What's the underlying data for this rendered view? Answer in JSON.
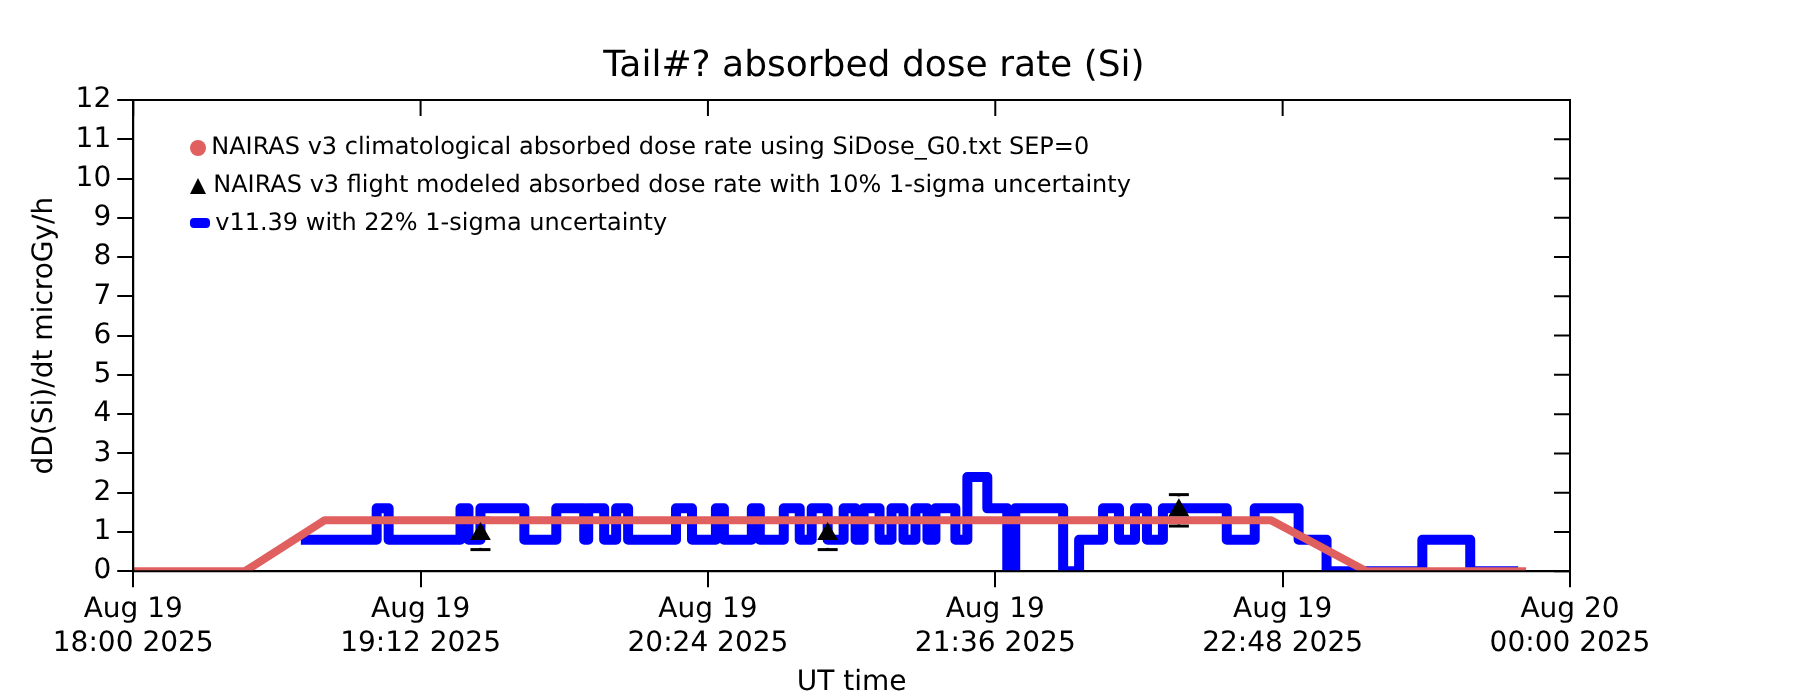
{
  "chart_data": {
    "type": "line",
    "title": "Tail#? absorbed dose rate (Si)",
    "xlabel": "UT time",
    "ylabel": "dD(Si)/dt microGy/h",
    "xlim": [
      "2025-08-19T18:00",
      "2025-08-20T00:00"
    ],
    "xticks": [
      {
        "value": "2025-08-19T18:00",
        "label": "Aug 19\n18:00 2025"
      },
      {
        "value": "2025-08-19T19:12",
        "label": "Aug 19\n19:12 2025"
      },
      {
        "value": "2025-08-19T20:24",
        "label": "Aug 19\n20:24 2025"
      },
      {
        "value": "2025-08-19T21:36",
        "label": "Aug 19\n21:36 2025"
      },
      {
        "value": "2025-08-19T22:48",
        "label": "Aug 19\n22:48 2025"
      },
      {
        "value": "2025-08-20T00:00",
        "label": "Aug 20\n00:00 2025"
      }
    ],
    "ylim": [
      0,
      12
    ],
    "yticks": [
      0,
      1,
      2,
      3,
      4,
      5,
      6,
      7,
      8,
      9,
      10,
      11,
      12
    ],
    "grid": false,
    "legend": "top left",
    "series": [
      {
        "name": "NAIRAS v3 climatological absorbed dose rate using SiDose_G0.txt SEP=0",
        "color": "#e06060",
        "marker": "none",
        "x": [
          "2025-08-19T18:00",
          "2025-08-19T18:28",
          "2025-08-19T18:48",
          "2025-08-19T22:45",
          "2025-08-19T23:09",
          "2025-08-19T23:49"
        ],
        "values": [
          0,
          0,
          1.3,
          1.3,
          0,
          0
        ]
      },
      {
        "name": "NAIRAS v3 flight modeled absorbed dose rate with 10% 1-sigma uncertainty",
        "type": "scatter",
        "color": "#000000",
        "marker": "triangle",
        "x": [
          "2025-08-19T19:27",
          "2025-08-19T20:54",
          "2025-08-19T22:22"
        ],
        "values": [
          0.95,
          0.95,
          1.55
        ],
        "errors": [
          0.4,
          0.4,
          0.4
        ]
      },
      {
        "name": "v11.39 with 22% 1-sigma uncertainty",
        "type": "step",
        "color": "#0000ff",
        "marker": "none",
        "x": [
          "2025-08-19T18:42",
          "2025-08-19T19:01",
          "2025-08-19T19:04",
          "2025-08-19T19:22",
          "2025-08-19T19:24",
          "2025-08-19T19:27",
          "2025-08-19T19:38",
          "2025-08-19T19:46",
          "2025-08-19T19:53",
          "2025-08-19T19:54",
          "2025-08-19T19:58",
          "2025-08-19T20:01",
          "2025-08-19T20:04",
          "2025-08-19T20:16",
          "2025-08-19T20:20",
          "2025-08-19T20:26",
          "2025-08-19T20:28",
          "2025-08-19T20:35",
          "2025-08-19T20:37",
          "2025-08-19T20:43",
          "2025-08-19T20:47",
          "2025-08-19T20:50",
          "2025-08-19T20:54",
          "2025-08-19T20:58",
          "2025-08-19T21:01",
          "2025-08-19T21:03",
          "2025-08-19T21:07",
          "2025-08-19T21:10",
          "2025-08-19T21:13",
          "2025-08-19T21:16",
          "2025-08-19T21:19",
          "2025-08-19T21:21",
          "2025-08-19T21:26",
          "2025-08-19T21:29",
          "2025-08-19T21:34",
          "2025-08-19T21:39",
          "2025-08-19T21:41",
          "2025-08-19T21:53",
          "2025-08-19T21:57",
          "2025-08-19T22:03",
          "2025-08-19T22:07",
          "2025-08-19T22:11",
          "2025-08-19T22:14",
          "2025-08-19T22:18",
          "2025-08-19T22:34",
          "2025-08-19T22:41",
          "2025-08-19T22:52",
          "2025-08-19T22:59",
          "2025-08-19T23:23",
          "2025-08-19T23:35",
          "2025-08-19T23:47"
        ],
        "values": [
          0.8,
          1.6,
          0.8,
          1.6,
          0.8,
          1.6,
          0.8,
          1.6,
          0.8,
          1.6,
          0.8,
          1.6,
          0.8,
          1.6,
          0.8,
          1.6,
          0.8,
          1.6,
          0.8,
          1.6,
          0.8,
          1.6,
          0.8,
          1.6,
          0.8,
          1.6,
          0.8,
          1.6,
          0.8,
          1.6,
          0.8,
          1.6,
          0.8,
          2.4,
          1.6,
          0,
          1.6,
          0,
          0.8,
          1.6,
          0.8,
          1.6,
          0.8,
          1.6,
          0.8,
          1.6,
          0.8,
          0,
          0.8,
          0,
          0
        ]
      }
    ]
  }
}
